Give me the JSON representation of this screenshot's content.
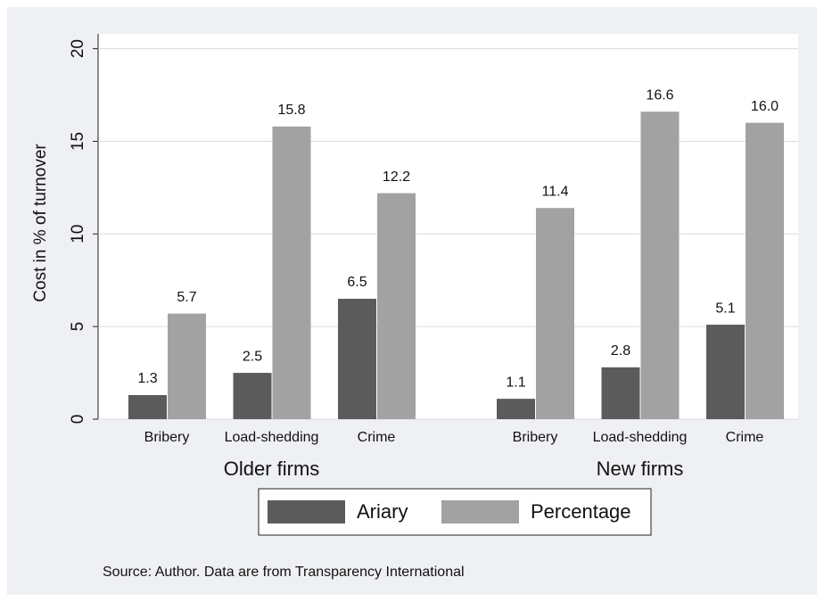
{
  "chart_data": {
    "type": "bar",
    "y_label": "Cost in % of turnover",
    "categories": [
      "Bribery",
      "Load-shedding",
      "Crime",
      "Bribery",
      "Load-shedding",
      "Crime"
    ],
    "group_labels": [
      "Older firms",
      "New firms"
    ],
    "series": [
      {
        "name": "Ariary",
        "color": "#5b5b5b",
        "values": [
          1.3,
          2.5,
          6.5,
          1.1,
          2.8,
          5.1
        ],
        "value_labels": [
          "1.3",
          "2.5",
          "6.5",
          "1.1",
          "2.8",
          "5.1"
        ]
      },
      {
        "name": "Percentage",
        "color": "#a2a2a2",
        "values": [
          5.7,
          15.8,
          12.2,
          11.4,
          16.6,
          16.0
        ],
        "value_labels": [
          "5.7",
          "15.8",
          "12.2",
          "11.4",
          "16.6",
          "16.0"
        ]
      }
    ],
    "ylim": [
      0,
      20.8
    ],
    "yticks": [
      0,
      5,
      10,
      15,
      20
    ],
    "grid": true,
    "source": "Source: Author. Data are from Transparency International"
  }
}
